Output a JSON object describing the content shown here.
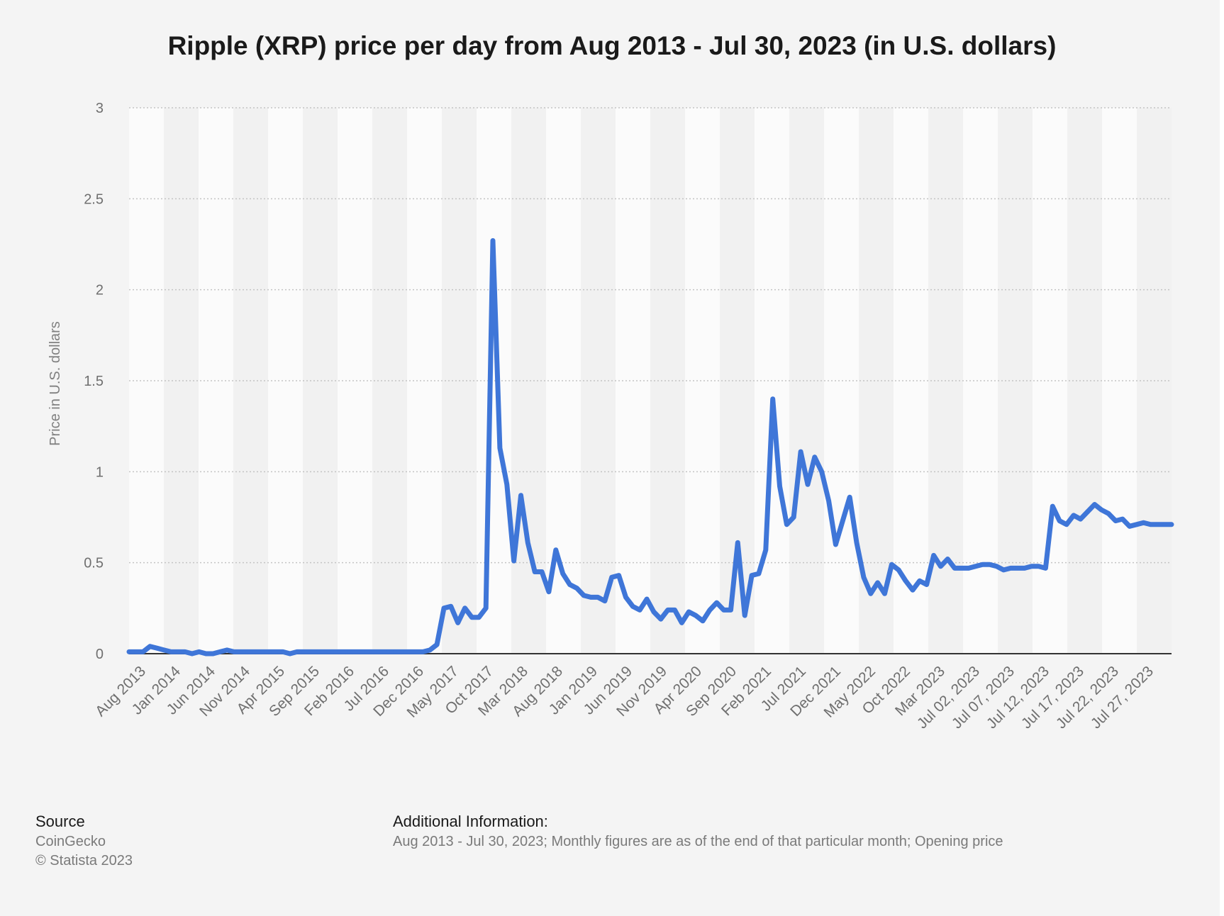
{
  "chart_data": {
    "type": "line",
    "title": "Ripple (XRP) price per day from Aug 2013 - Jul 30, 2023 (in U.S. dollars)",
    "xlabel": "",
    "ylabel": "Price in U.S. dollars",
    "ylim": [
      0,
      3
    ],
    "y_ticks": [
      "0",
      "0.5",
      "1",
      "1.5",
      "2",
      "2.5",
      "3"
    ],
    "x_tick_labels": [
      "Aug 2013",
      "Jan 2014",
      "Jun 2014",
      "Nov 2014",
      "Apr 2015",
      "Sep 2015",
      "Feb 2016",
      "Jul 2016",
      "Dec 2016",
      "May 2017",
      "Oct 2017",
      "Mar 2018",
      "Aug 2018",
      "Jan 2019",
      "Jun 2019",
      "Nov 2019",
      "Apr 2020",
      "Sep 2020",
      "Feb 2021",
      "Jul 2021",
      "Dec 2021",
      "May 2022",
      "Oct 2022",
      "Mar 2023",
      "Jul 02, 2023",
      "Jul 07, 2023",
      "Jul 12, 2023",
      "Jul 17, 2023",
      "Jul 22, 2023",
      "Jul 27, 2023"
    ],
    "grid": true,
    "legend": "none",
    "line_color": "#3f76d8",
    "series": [
      {
        "values": [
          0.01,
          0.01,
          0.01,
          0.04,
          0.03,
          0.02,
          0.01,
          0.01,
          0.01,
          0.0,
          0.01,
          0.0,
          0.0,
          0.01,
          0.02,
          0.01,
          0.01,
          0.01,
          0.01,
          0.01,
          0.01,
          0.01,
          0.01,
          0.0,
          0.01,
          0.01,
          0.01,
          0.01,
          0.01,
          0.01,
          0.01,
          0.01,
          0.01,
          0.01,
          0.01,
          0.01,
          0.01,
          0.01,
          0.01,
          0.01,
          0.01,
          0.01,
          0.01,
          0.02,
          0.05,
          0.25,
          0.26,
          0.17,
          0.25,
          0.2,
          0.2,
          0.25,
          2.27,
          1.13,
          0.93,
          0.51,
          0.87,
          0.61,
          0.45,
          0.45,
          0.34,
          0.57,
          0.44,
          0.38,
          0.36,
          0.32,
          0.31,
          0.31,
          0.29,
          0.42,
          0.43,
          0.31,
          0.26,
          0.24,
          0.3,
          0.23,
          0.19,
          0.24,
          0.24,
          0.17,
          0.23,
          0.21,
          0.18,
          0.24,
          0.28,
          0.24,
          0.24,
          0.61,
          0.21,
          0.43,
          0.44,
          0.57,
          1.4,
          0.92,
          0.71,
          0.75,
          1.11,
          0.93,
          1.08,
          1.0,
          0.84,
          0.6,
          0.73,
          0.86,
          0.61,
          0.42,
          0.33,
          0.39,
          0.33,
          0.49,
          0.46,
          0.4,
          0.35,
          0.4,
          0.38,
          0.54,
          0.48,
          0.52,
          0.47,
          0.47,
          0.47,
          0.48,
          0.49,
          0.49,
          0.48,
          0.46,
          0.47,
          0.47,
          0.47,
          0.48,
          0.48,
          0.47,
          0.81,
          0.73,
          0.71,
          0.76,
          0.74,
          0.78,
          0.82,
          0.79,
          0.77,
          0.73,
          0.74,
          0.7,
          0.71,
          0.72,
          0.71,
          0.71,
          0.71,
          0.71
        ]
      }
    ]
  },
  "footer": {
    "source_heading": "Source",
    "source_name": "CoinGecko",
    "copyright": "© Statista 2023",
    "info_heading": "Additional Information:",
    "info_text": "Aug 2013 - Jul 30, 2023; Monthly figures are as of the end of that particular month; Opening price"
  }
}
